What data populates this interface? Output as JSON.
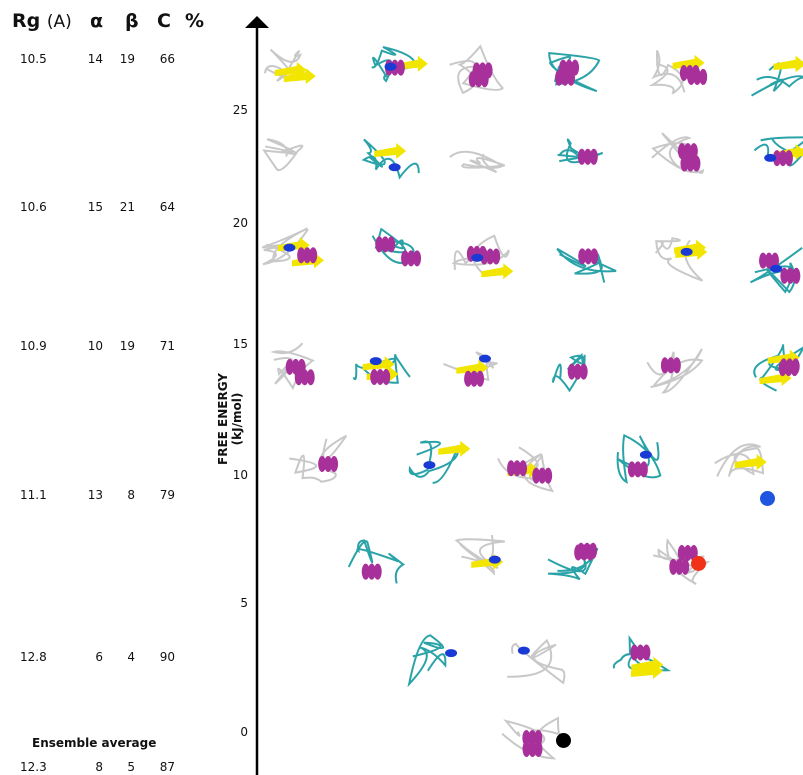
{
  "headers": {
    "rg": "Rg",
    "rg_unit": "(A)",
    "alpha": "α",
    "beta": "β",
    "c": "C",
    "percent": "%"
  },
  "rows": [
    {
      "rg": "10.5",
      "alpha": "14",
      "beta": "19",
      "c": "66"
    },
    {
      "rg": "10.6",
      "alpha": "15",
      "beta": "21",
      "c": "64"
    },
    {
      "rg": "10.9",
      "alpha": "10",
      "beta": "19",
      "c": "71"
    },
    {
      "rg": "11.1",
      "alpha": "13",
      "beta": "8",
      "c": "79"
    },
    {
      "rg": "12.8",
      "alpha": "6",
      "beta": "4",
      "c": "90"
    }
  ],
  "ensemble": {
    "label": "Ensemble average",
    "rg": "12.3",
    "alpha": "8",
    "beta": "5",
    "c": "87"
  },
  "axis": {
    "label": "FREE ENERGY (kJ/mol)",
    "ticks": [
      "25",
      "20",
      "15",
      "10",
      "5",
      "0"
    ]
  },
  "colors": {
    "helix": "#a8309a",
    "strand": "#f2e600",
    "helix310": "#1a3ad6",
    "turn": "#2aa3a8",
    "coil": "#c8c8c8",
    "marker_blue": "#1f56e0",
    "marker_red": "#f03318",
    "marker_black": "#000000"
  }
}
